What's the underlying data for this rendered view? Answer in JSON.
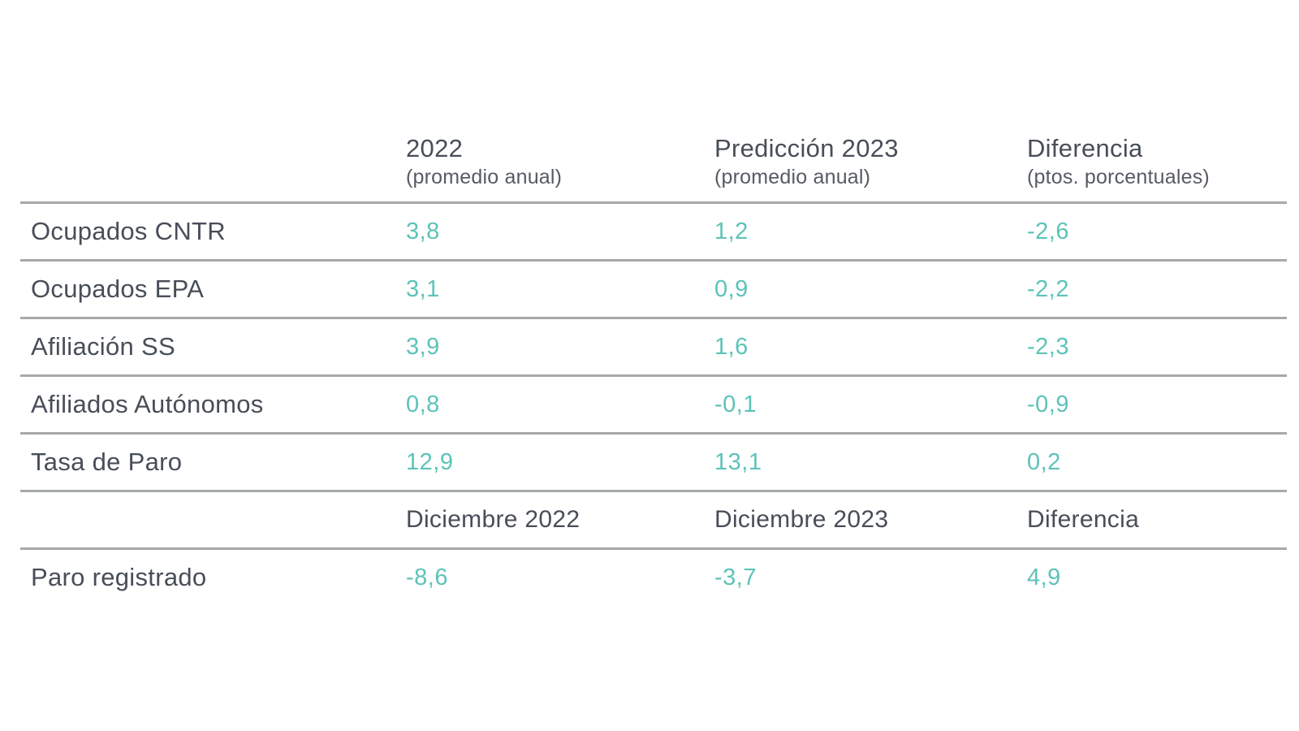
{
  "accent_color": "#5cc3b9",
  "text_color": "#484e58",
  "line_color": "#a6a9ab",
  "table": {
    "header": {
      "col1_title": "2022",
      "col1_sub": "(promedio anual)",
      "col2_title": "Predicción 2023",
      "col2_sub": "(promedio anual)",
      "col3_title": "Diferencia",
      "col3_sub": "(ptos. porcentuales)"
    },
    "rows": [
      {
        "label": "Ocupados CNTR",
        "v2022": "3,8",
        "pred2023": "1,2",
        "diff": "-2,6"
      },
      {
        "label": "Ocupados EPA",
        "v2022": "3,1",
        "pred2023": "0,9",
        "diff": "-2,2"
      },
      {
        "label": "Afiliación SS",
        "v2022": "3,9",
        "pred2023": "1,6",
        "diff": "-2,3"
      },
      {
        "label": "Afiliados Autónomos",
        "v2022": "0,8",
        "pred2023": "-0,1",
        "diff": "-0,9"
      },
      {
        "label": "Tasa de Paro",
        "v2022": "12,9",
        "pred2023": "13,1",
        "diff": "0,2"
      }
    ],
    "subheader": {
      "col1": "Diciembre 2022",
      "col2": "Diciembre 2023",
      "col3": "Diferencia"
    },
    "rows2": [
      {
        "label": "Paro registrado",
        "dec2022": "-8,6",
        "dec2023": "-3,7",
        "diff": "4,9"
      }
    ]
  },
  "chart_data": {
    "type": "table",
    "title": "",
    "sections": [
      {
        "columns": [
          "",
          "2022 (promedio anual)",
          "Predicción 2023 (promedio anual)",
          "Diferencia (ptos. porcentuales)"
        ],
        "rows": [
          [
            "Ocupados CNTR",
            3.8,
            1.2,
            -2.6
          ],
          [
            "Ocupados EPA",
            3.1,
            0.9,
            -2.2
          ],
          [
            "Afiliación SS",
            3.9,
            1.6,
            -2.3
          ],
          [
            "Afiliados Autónomos",
            0.8,
            -0.1,
            -0.9
          ],
          [
            "Tasa de Paro",
            12.9,
            13.1,
            0.2
          ]
        ]
      },
      {
        "columns": [
          "",
          "Diciembre 2022",
          "Diciembre 2023",
          "Diferencia"
        ],
        "rows": [
          [
            "Paro registrado",
            -8.6,
            -3.7,
            4.9
          ]
        ]
      }
    ]
  }
}
